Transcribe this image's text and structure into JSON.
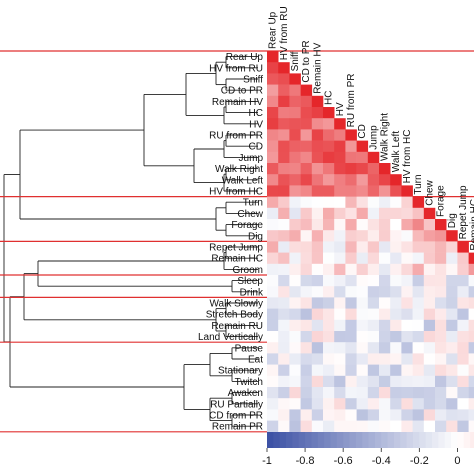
{
  "chart_data": {
    "type": "heatmap",
    "variables": [
      "Rear Up",
      "HV from RU",
      "Sniff",
      "CD to PR",
      "Remain HV",
      "HC",
      "HV",
      "RU from PR",
      "CD",
      "Jump",
      "Walk Right",
      "Walk Left",
      "HV from HC",
      "Turn",
      "Chew",
      "Forage",
      "Dig",
      "Repet Jump",
      "Remain HC",
      "Groom",
      "Sleep",
      "Drink",
      "Walk Slowly",
      "Stretch Body",
      "Remain RU",
      "Land Vertically",
      "Pause",
      "Eat",
      "Stationary",
      "Twitch",
      "Awaken",
      "RU Partially",
      "CD from PR",
      "Remain PR"
    ],
    "top_labels": [
      "Rear Up",
      "HV from RU",
      "Sniff",
      "CD to PR",
      "Remain HV",
      "HC",
      "HV",
      "RU from PR",
      "CD",
      "Jump",
      "Walk Right",
      "Walk Left",
      "HV from HC",
      "Turn",
      "Chew",
      "Forage",
      "Dig",
      "Repet Jump",
      "Remain HC"
    ],
    "cluster_boundaries_after": [
      12,
      16,
      19,
      21,
      25
    ],
    "colorbar": {
      "min": -1,
      "max": 1,
      "ticks": [
        "-1",
        "-0.8",
        "-0.6",
        "-0.4",
        "-0.2",
        "0"
      ]
    },
    "colors": {
      "negative": "#3a4fa3",
      "zero": "#ffffff",
      "positive": "#e5262a",
      "separator": "#e03030"
    },
    "diagonal": 1
  }
}
